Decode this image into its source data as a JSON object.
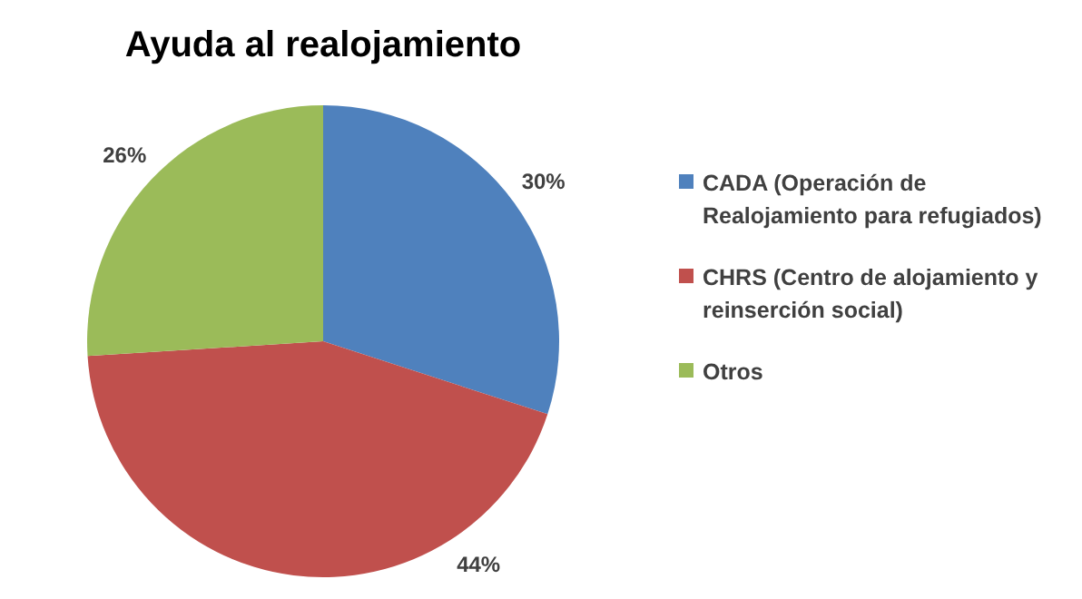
{
  "chart_data": {
    "type": "pie",
    "title": "Ayuda al realojamiento",
    "categories": [
      "CADA (Operación de Realojamiento para refugiados)",
      "CHRS (Centro de alojamiento y reinserción social)",
      "Otros"
    ],
    "values": [
      30,
      44,
      26
    ],
    "colors": [
      "#4f81bd",
      "#c0504d",
      "#9bbb59"
    ],
    "value_labels": [
      "30%",
      "44%",
      "26%"
    ],
    "legend": "right"
  }
}
